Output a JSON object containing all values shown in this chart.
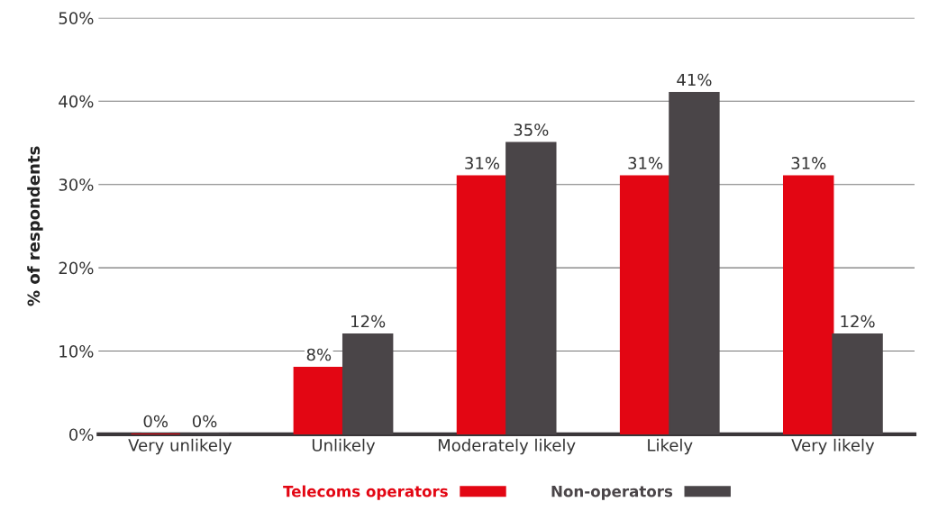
{
  "chart_data": {
    "type": "bar",
    "ylabel": "% of respondents",
    "categories": [
      "Very unlikely",
      "Unlikely",
      "Moderately likely",
      "Likely",
      "Very likely"
    ],
    "series": [
      {
        "name": "Telecoms operators",
        "color": "#e30613",
        "values": [
          0,
          8,
          31,
          31,
          31
        ],
        "value_labels": [
          "0%",
          "8%",
          "31%",
          "31%",
          "31%"
        ]
      },
      {
        "name": "Non-operators",
        "color": "#4a4548",
        "values": [
          0,
          12,
          35,
          41,
          12
        ],
        "value_labels": [
          "0%",
          "12%",
          "35%",
          "41%",
          "12%"
        ]
      }
    ],
    "ylim": [
      0,
      50
    ],
    "yticks": [
      {
        "value": 0,
        "label": "0%"
      },
      {
        "value": 10,
        "label": "10%"
      },
      {
        "value": 20,
        "label": "20%"
      },
      {
        "value": 30,
        "label": "30%"
      },
      {
        "value": 40,
        "label": "40%"
      },
      {
        "value": 50,
        "label": "50%"
      }
    ],
    "grid": "y",
    "legend": "bottom"
  }
}
